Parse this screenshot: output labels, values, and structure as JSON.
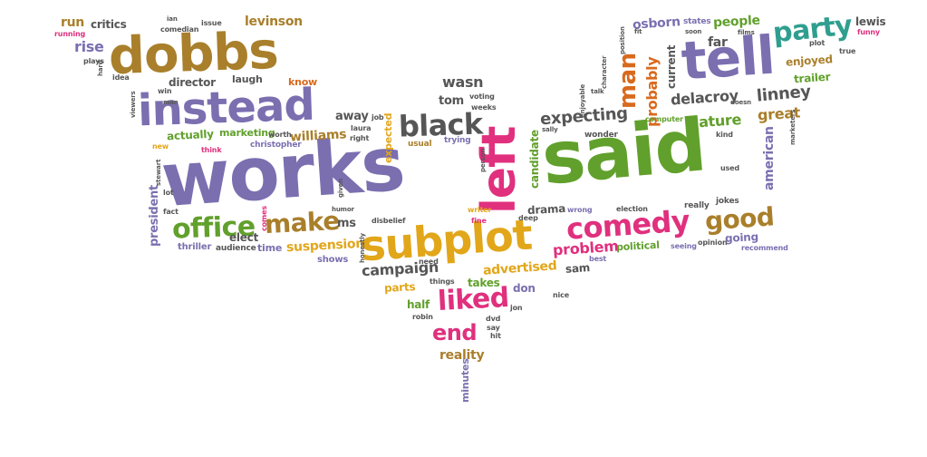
{
  "cloud": {
    "background": "#ffffff",
    "palette": {
      "purple": "#7b6fb0",
      "gold": "#e2a61a",
      "green": "#61a02c",
      "pink": "#e0307e",
      "brown": "#a97f2b",
      "gray": "#565656",
      "teal": "#2f9e8f",
      "orange": "#d86a1e"
    },
    "words": [
      {
        "text": "works",
        "color": "#7b6fb0",
        "size": 82
      },
      {
        "text": "said",
        "color": "#61a02c",
        "size": 80
      },
      {
        "text": "dobbs",
        "color": "#a97f2b",
        "size": 56
      },
      {
        "text": "instead",
        "color": "#7b6fb0",
        "size": 48
      },
      {
        "text": "tell",
        "color": "#7b6fb0",
        "size": 58
      },
      {
        "text": "subplot",
        "color": "#e2a61a",
        "size": 46
      },
      {
        "text": "left",
        "color": "#e0307e",
        "size": 52
      },
      {
        "text": "black",
        "color": "#565656",
        "size": 32
      },
      {
        "text": "comedy",
        "color": "#e0307e",
        "size": 32
      },
      {
        "text": "office",
        "color": "#61a02c",
        "size": 30
      },
      {
        "text": "make",
        "color": "#a97f2b",
        "size": 28
      },
      {
        "text": "good",
        "color": "#a97f2b",
        "size": 28
      },
      {
        "text": "party",
        "color": "#2f9e8f",
        "size": 30
      },
      {
        "text": "liked",
        "color": "#e0307e",
        "size": 30
      },
      {
        "text": "end",
        "color": "#e0307e",
        "size": 24
      },
      {
        "text": "man",
        "color": "#d86a1e",
        "size": 26
      },
      {
        "text": "probably",
        "color": "#d86a1e",
        "size": 16
      },
      {
        "text": "expecting",
        "color": "#565656",
        "size": 18
      },
      {
        "text": "linney",
        "color": "#565656",
        "size": 18
      },
      {
        "text": "delacroy",
        "color": "#565656",
        "size": 16
      },
      {
        "text": "nature",
        "color": "#61a02c",
        "size": 16
      },
      {
        "text": "great",
        "color": "#a97f2b",
        "size": 16
      },
      {
        "text": "problem",
        "color": "#e0307e",
        "size": 16
      },
      {
        "text": "suspension",
        "color": "#e2a61a",
        "size": 14
      },
      {
        "text": "campaign",
        "color": "#565656",
        "size": 16
      },
      {
        "text": "advertised",
        "color": "#e2a61a",
        "size": 14
      },
      {
        "text": "williams",
        "color": "#a97f2b",
        "size": 14
      },
      {
        "text": "actually",
        "color": "#61a02c",
        "size": 12
      },
      {
        "text": "wasn",
        "color": "#565656",
        "size": 16
      },
      {
        "text": "reality",
        "color": "#a97f2b",
        "size": 14
      },
      {
        "text": "parts",
        "color": "#e2a61a",
        "size": 12
      },
      {
        "text": "half",
        "color": "#61a02c",
        "size": 12
      },
      {
        "text": "takes",
        "color": "#61a02c",
        "size": 12
      },
      {
        "text": "don",
        "color": "#7b6fb0",
        "size": 12
      },
      {
        "text": "sam",
        "color": "#565656",
        "size": 12
      },
      {
        "text": "going",
        "color": "#7b6fb0",
        "size": 12
      },
      {
        "text": "political",
        "color": "#61a02c",
        "size": 11
      },
      {
        "text": "time",
        "color": "#7b6fb0",
        "size": 11
      },
      {
        "text": "elect",
        "color": "#565656",
        "size": 12
      },
      {
        "text": "shows",
        "color": "#7b6fb0",
        "size": 10
      },
      {
        "text": "thriller",
        "color": "#7b6fb0",
        "size": 10
      },
      {
        "text": "audience",
        "color": "#565656",
        "size": 9
      },
      {
        "text": "drama",
        "color": "#565656",
        "size": 12
      },
      {
        "text": "away",
        "color": "#565656",
        "size": 13
      },
      {
        "text": "ms",
        "color": "#565656",
        "size": 13
      },
      {
        "text": "tom",
        "color": "#565656",
        "size": 13
      },
      {
        "text": "director",
        "color": "#565656",
        "size": 12
      },
      {
        "text": "laugh",
        "color": "#565656",
        "size": 11
      },
      {
        "text": "know",
        "color": "#d86a1e",
        "size": 11
      },
      {
        "text": "marketing",
        "color": "#61a02c",
        "size": 11
      },
      {
        "text": "christopher",
        "color": "#7b6fb0",
        "size": 9
      },
      {
        "text": "levinson",
        "color": "#a97f2b",
        "size": 14
      },
      {
        "text": "rise",
        "color": "#7b6fb0",
        "size": 16
      },
      {
        "text": "run",
        "color": "#a97f2b",
        "size": 14
      },
      {
        "text": "critics",
        "color": "#565656",
        "size": 12
      },
      {
        "text": "running",
        "color": "#e0307e",
        "size": 8
      },
      {
        "text": "comedian",
        "color": "#565656",
        "size": 8
      },
      {
        "text": "issue",
        "color": "#565656",
        "size": 8
      },
      {
        "text": "osborn",
        "color": "#7b6fb0",
        "size": 14
      },
      {
        "text": "states",
        "color": "#7b6fb0",
        "size": 9
      },
      {
        "text": "people",
        "color": "#61a02c",
        "size": 14
      },
      {
        "text": "far",
        "color": "#565656",
        "size": 14
      },
      {
        "text": "lewis",
        "color": "#565656",
        "size": 12
      },
      {
        "text": "enjoyed",
        "color": "#a97f2b",
        "size": 12
      },
      {
        "text": "trailer",
        "color": "#61a02c",
        "size": 12
      },
      {
        "text": "current",
        "color": "#565656",
        "size": 12
      },
      {
        "text": "american",
        "color": "#7b6fb0",
        "size": 14
      },
      {
        "text": "president",
        "color": "#7b6fb0",
        "size": 13
      },
      {
        "text": "candidate",
        "color": "#61a02c",
        "size": 12
      },
      {
        "text": "expected",
        "color": "#e2a61a",
        "size": 11
      },
      {
        "text": "minutes",
        "color": "#7b6fb0",
        "size": 11
      },
      {
        "text": "recommend",
        "color": "#7b6fb0",
        "size": 8
      },
      {
        "text": "jokes",
        "color": "#565656",
        "size": 9
      },
      {
        "text": "really",
        "color": "#565656",
        "size": 9
      },
      {
        "text": "election",
        "color": "#565656",
        "size": 8
      },
      {
        "text": "opinion",
        "color": "#565656",
        "size": 8
      },
      {
        "text": "seeing",
        "color": "#7b6fb0",
        "size": 8
      },
      {
        "text": "best",
        "color": "#7b6fb0",
        "size": 8
      },
      {
        "text": "need",
        "color": "#565656",
        "size": 8
      },
      {
        "text": "things",
        "color": "#565656",
        "size": 8
      },
      {
        "text": "nice",
        "color": "#565656",
        "size": 8
      },
      {
        "text": "dvd",
        "color": "#565656",
        "size": 8
      },
      {
        "text": "say",
        "color": "#565656",
        "size": 8
      },
      {
        "text": "hit",
        "color": "#565656",
        "size": 8
      },
      {
        "text": "jon",
        "color": "#565656",
        "size": 8
      },
      {
        "text": "robin",
        "color": "#565656",
        "size": 8
      },
      {
        "text": "fine",
        "color": "#e0307e",
        "size": 8
      },
      {
        "text": "deep",
        "color": "#565656",
        "size": 8
      },
      {
        "text": "writer",
        "color": "#e2a61a",
        "size": 8
      },
      {
        "text": "usual",
        "color": "#a97f2b",
        "size": 9
      },
      {
        "text": "trying",
        "color": "#7b6fb0",
        "size": 9
      },
      {
        "text": "voting",
        "color": "#565656",
        "size": 8
      },
      {
        "text": "weeks",
        "color": "#565656",
        "size": 8
      },
      {
        "text": "job",
        "color": "#565656",
        "size": 8
      },
      {
        "text": "laura",
        "color": "#565656",
        "size": 8
      },
      {
        "text": "right",
        "color": "#565656",
        "size": 8
      },
      {
        "text": "worth",
        "color": "#565656",
        "size": 8
      },
      {
        "text": "think",
        "color": "#e0307e",
        "size": 8
      },
      {
        "text": "new",
        "color": "#e2a61a",
        "size": 8
      },
      {
        "text": "fact",
        "color": "#565656",
        "size": 8
      },
      {
        "text": "lot",
        "color": "#565656",
        "size": 8
      },
      {
        "text": "stewart",
        "color": "#565656",
        "size": 7
      },
      {
        "text": "comes",
        "color": "#e0307e",
        "size": 8
      },
      {
        "text": "given",
        "color": "#565656",
        "size": 7
      },
      {
        "text": "humor",
        "color": "#565656",
        "size": 7
      },
      {
        "text": "honestly",
        "color": "#565656",
        "size": 7
      },
      {
        "text": "disbelief",
        "color": "#565656",
        "size": 8
      },
      {
        "text": "wrong",
        "color": "#7b6fb0",
        "size": 8
      },
      {
        "text": "wonder",
        "color": "#565656",
        "size": 9
      },
      {
        "text": "computer",
        "color": "#61a02c",
        "size": 8
      },
      {
        "text": "kind",
        "color": "#565656",
        "size": 8
      },
      {
        "text": "used",
        "color": "#565656",
        "size": 8
      },
      {
        "text": "person",
        "color": "#565656",
        "size": 7
      },
      {
        "text": "sally",
        "color": "#565656",
        "size": 7
      },
      {
        "text": "talk",
        "color": "#565656",
        "size": 7
      },
      {
        "text": "enjoyable",
        "color": "#565656",
        "size": 7
      },
      {
        "text": "character",
        "color": "#565656",
        "size": 7
      },
      {
        "text": "position",
        "color": "#565656",
        "size": 7
      },
      {
        "text": "fit",
        "color": "#565656",
        "size": 7
      },
      {
        "text": "soon",
        "color": "#565656",
        "size": 7
      },
      {
        "text": "films",
        "color": "#565656",
        "size": 7
      },
      {
        "text": "plot",
        "color": "#565656",
        "size": 8
      },
      {
        "text": "true",
        "color": "#565656",
        "size": 8
      },
      {
        "text": "funny",
        "color": "#e0307e",
        "size": 8
      },
      {
        "text": "doesn",
        "color": "#565656",
        "size": 7
      },
      {
        "text": "marketers",
        "color": "#565656",
        "size": 7
      },
      {
        "text": "idea",
        "color": "#565656",
        "size": 8
      },
      {
        "text": "plays",
        "color": "#565656",
        "size": 8
      },
      {
        "text": "hard",
        "color": "#565656",
        "size": 7
      },
      {
        "text": "win",
        "color": "#565656",
        "size": 8
      },
      {
        "text": "viewers",
        "color": "#565656",
        "size": 7
      },
      {
        "text": "man",
        "color": "#565656",
        "size": 7
      },
      {
        "text": "ian",
        "color": "#565656",
        "size": 7
      }
    ]
  }
}
